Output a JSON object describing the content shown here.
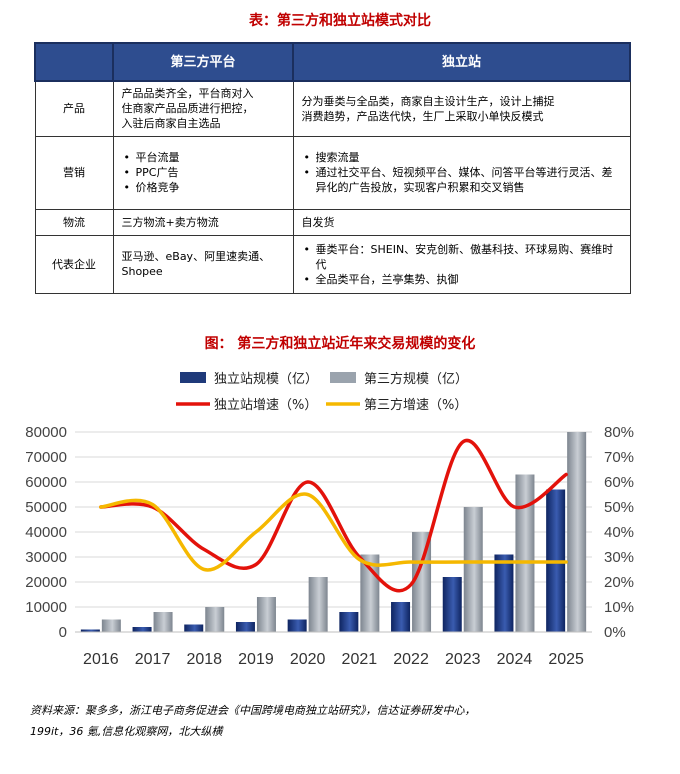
{
  "table": {
    "title": "表：第三方和独立站模式对比",
    "headers": [
      "第三方平台",
      "独立站"
    ],
    "rows": [
      {
        "label": "产品",
        "third": [
          "产品品类齐全，平台商对入",
          "住商家产品品质进行把控，",
          "入驻后商家自主选品"
        ],
        "independent": [
          "分为垂类与全品类，商家自主设计生产，设计上捕捉",
          "消费趋势，产品迭代快，生厂上采取小单快反模式"
        ]
      },
      {
        "label": "营销",
        "third_bullets": [
          "平台流量",
          "PPC广告",
          "价格竞争"
        ],
        "independent_bullets": [
          "搜索流量",
          "通过社交平台、短视频平台、媒体、问答平台等进行灵活、差异化的广告投放，实现客户积累和交叉销售"
        ]
      },
      {
        "label": "物流",
        "third": [
          "三方物流+卖方物流"
        ],
        "independent": [
          "自发货"
        ]
      },
      {
        "label": "代表企业",
        "third": [
          "亚马逊、eBay、阿里速卖通、",
          "Shopee"
        ],
        "independent_bullets": [
          "垂类平台：SHEIN、安克创新、傲基科技、环球易购、赛维时代",
          "全品类平台，兰亭集势、执御"
        ]
      }
    ]
  },
  "chart_data": {
    "type": "bar",
    "title": "图：  第三方和独立站近年来交易规模的变化",
    "categories": [
      "2016",
      "2017",
      "2018",
      "2019",
      "2020",
      "2021",
      "2022",
      "2023",
      "2024",
      "2025"
    ],
    "series": [
      {
        "name": "独立站规模（亿）",
        "kind": "bar",
        "axis": "left",
        "color": "#1f3a7a",
        "values": [
          1000,
          2000,
          3000,
          4000,
          5000,
          8000,
          12000,
          22000,
          31000,
          57000
        ]
      },
      {
        "name": "第三方规模（亿）",
        "kind": "bar",
        "axis": "left",
        "color": "#9aa3ad",
        "values": [
          5000,
          8000,
          10000,
          14000,
          22000,
          31000,
          40000,
          50000,
          63000,
          80000
        ]
      },
      {
        "name": "独立站增速（%）",
        "kind": "line",
        "axis": "right",
        "color": "#e3120b",
        "values": [
          50,
          50,
          33,
          27,
          60,
          30,
          19,
          76,
          50,
          63
        ]
      },
      {
        "name": "第三方增速（%）",
        "kind": "line",
        "axis": "right",
        "color": "#f5b800",
        "values": [
          50,
          51,
          25,
          40,
          55,
          29,
          28,
          28,
          28,
          28
        ]
      }
    ],
    "y_left": {
      "min": 0,
      "max": 80000,
      "ticks": [
        "0",
        "10000",
        "20000",
        "30000",
        "40000",
        "50000",
        "60000",
        "70000",
        "80000"
      ]
    },
    "y_right": {
      "min": 0,
      "max": 80,
      "ticks": [
        "0%",
        "10%",
        "20%",
        "30%",
        "40%",
        "50%",
        "60%",
        "70%",
        "80%"
      ]
    }
  },
  "source": {
    "line1": "资料来源：聚多多，浙江电子商务促进会《中国跨境电商独立站研究》，信达证券研发中心，",
    "line2": "199it，36 氪,信息化观察网，北大纵横"
  }
}
